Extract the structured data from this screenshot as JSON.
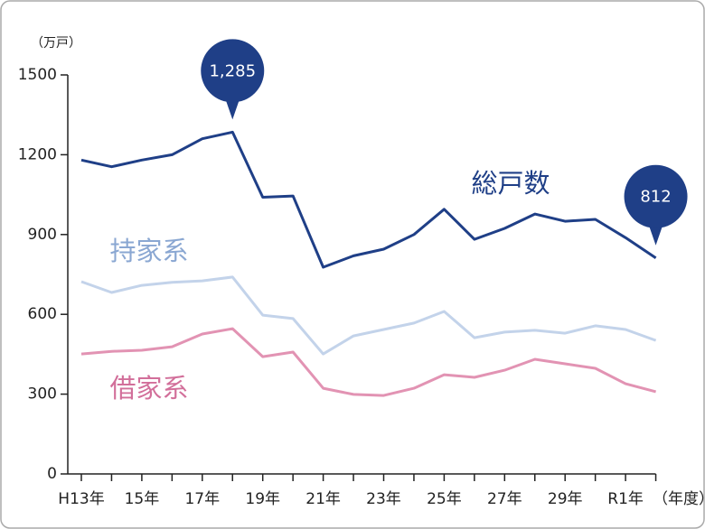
{
  "chart_data": {
    "type": "line",
    "y_label": "（万戸）",
    "x_label": "（年度）",
    "categories": [
      "H13年",
      null,
      "15年",
      null,
      "17年",
      null,
      "19年",
      null,
      "21年",
      null,
      "23年",
      null,
      "25年",
      null,
      "27年",
      null,
      "29年",
      null,
      "R1年",
      null
    ],
    "ylim": [
      0,
      1500
    ],
    "yticks": [
      0,
      300,
      600,
      900,
      1200,
      1500
    ],
    "series": [
      {
        "name": "総戸数",
        "color": "#1f3f87",
        "label_color": "#1f3f87",
        "values": [
          1180,
          1155,
          1180,
          1200,
          1260,
          1285,
          1040,
          1045,
          777,
          820,
          845,
          900,
          995,
          882,
          923,
          977,
          950,
          957,
          888,
          812
        ],
        "value_labels": [
          null,
          null,
          null,
          null,
          null,
          "1,285",
          null,
          null,
          null,
          null,
          null,
          null,
          null,
          null,
          null,
          null,
          null,
          null,
          null,
          "812"
        ]
      },
      {
        "name": "持家系",
        "color": "#c3d3ea",
        "label_color": "#8aa7d2",
        "values": [
          723,
          682,
          709,
          720,
          726,
          740,
          597,
          584,
          451,
          519,
          543,
          567,
          611,
          512,
          533,
          540,
          529,
          557,
          543,
          502
        ]
      },
      {
        "name": "借家系",
        "color": "#e293b3",
        "label_color": "#d26f9a",
        "values": [
          451,
          461,
          465,
          478,
          526,
          546,
          441,
          458,
          322,
          299,
          295,
          322,
          373,
          363,
          390,
          431,
          414,
          397,
          339,
          309
        ]
      }
    ]
  }
}
